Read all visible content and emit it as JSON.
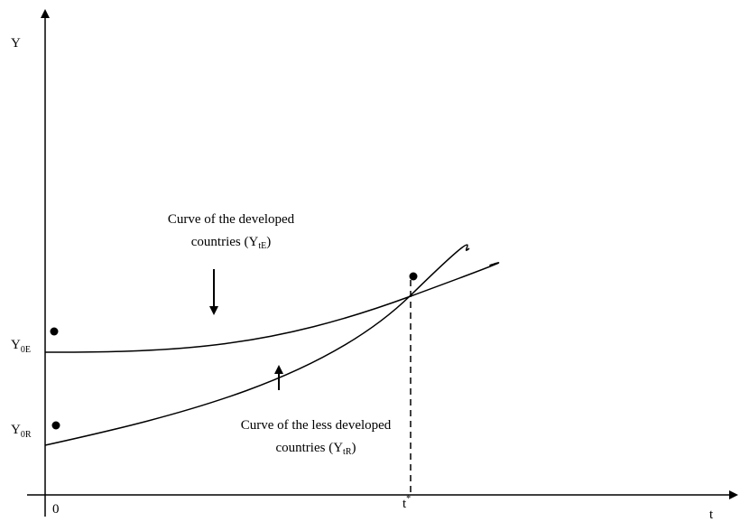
{
  "axes": {
    "y_label": "Y",
    "x_label": "t",
    "origin": "0"
  },
  "t_star": {
    "base": "t",
    "sup": "*"
  },
  "y_labels": [
    {
      "base": "Y",
      "sub": "0E"
    },
    {
      "base": "Y",
      "sub": "0R"
    }
  ],
  "annotations": [
    {
      "line1": "Curve of the developed",
      "line2": "countries (Y",
      "sub": "tE",
      "tail": ")"
    },
    {
      "line1": "Curve of the less developed",
      "line2": "countries (Y",
      "sub": "tR",
      "tail": ")"
    }
  ]
}
